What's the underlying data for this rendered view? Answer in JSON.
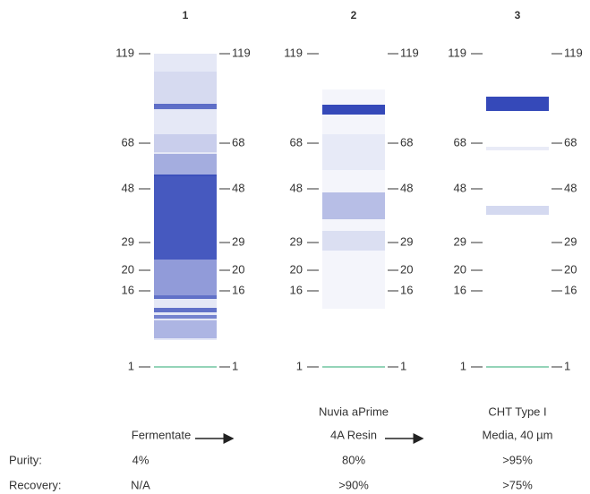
{
  "lanes": [
    {
      "number": "1",
      "name_lines": [
        "Fermentate"
      ],
      "purity": "4%",
      "recovery": "N/A"
    },
    {
      "number": "2",
      "name_lines": [
        "Nuvia aPrime",
        "4A Resin"
      ],
      "purity": "80%",
      "recovery": ">90%"
    },
    {
      "number": "3",
      "name_lines": [
        "CHT Type I",
        "Media, 40 µm"
      ],
      "purity": ">95%",
      "recovery": ">75%"
    }
  ],
  "markers": [
    119,
    68,
    48,
    29,
    20,
    16,
    1
  ],
  "row_labels": {
    "purity": "Purity:",
    "recovery": "Recovery:"
  }
}
